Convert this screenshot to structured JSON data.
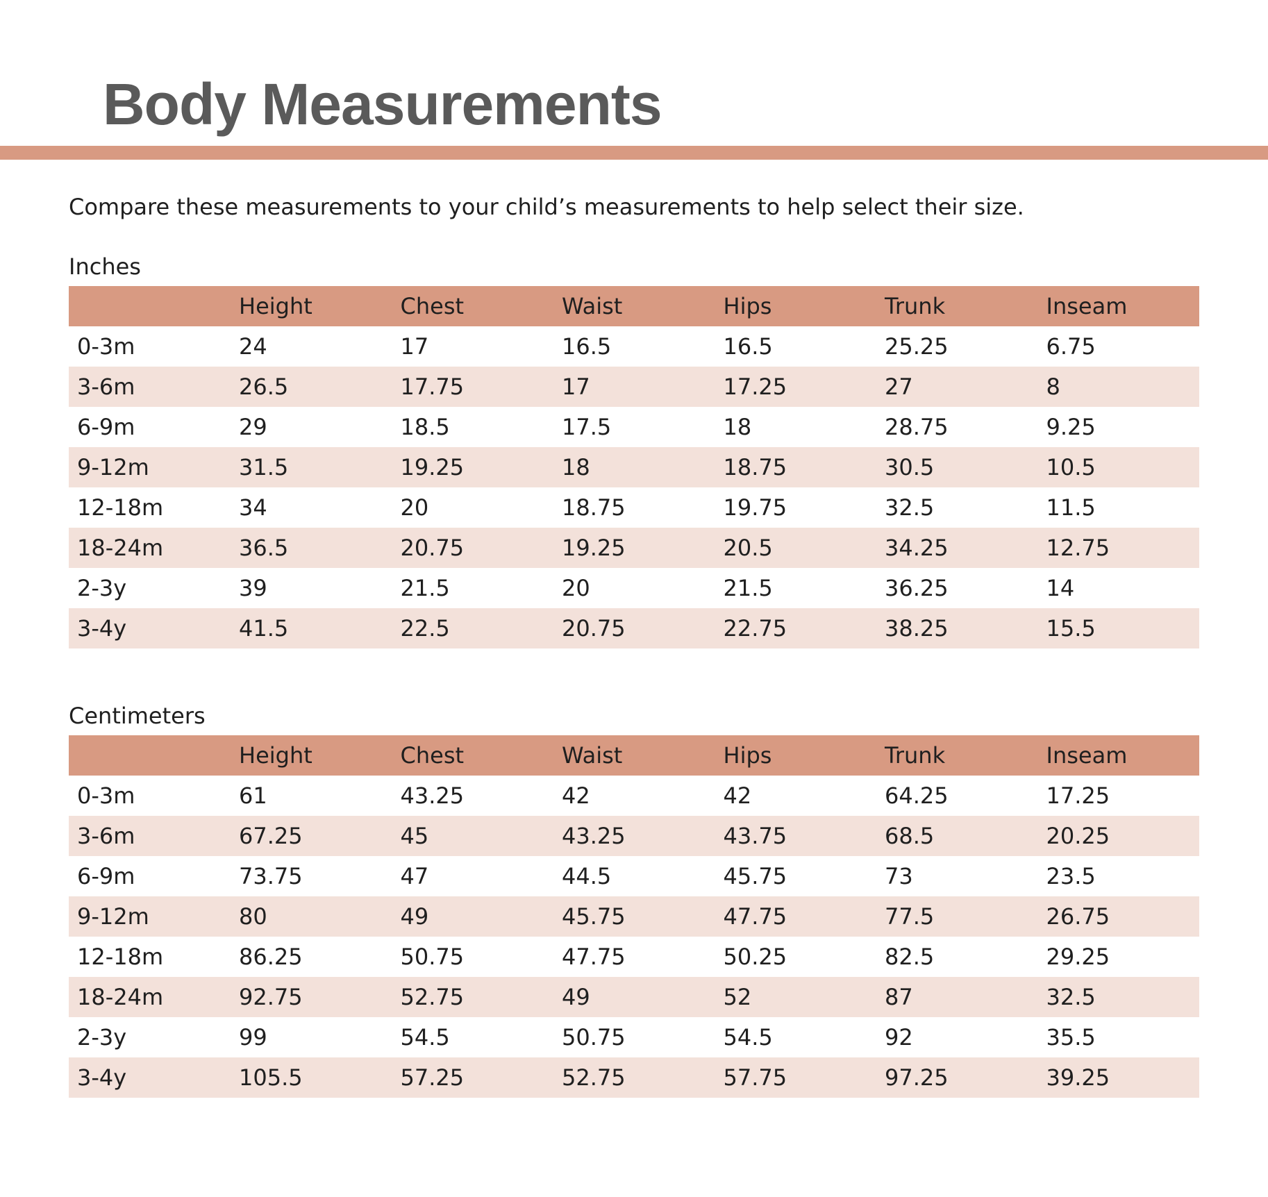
{
  "title": "Body Measurements",
  "intro": "Compare these measurements to your child’s measurements to help select their size.",
  "columns": [
    "",
    "Height",
    "Chest",
    "Waist",
    "Hips",
    "Trunk",
    "Inseam"
  ],
  "inches": {
    "label": "Inches",
    "rows": [
      [
        "0-3m",
        "24",
        "17",
        "16.5",
        "16.5",
        "25.25",
        "6.75"
      ],
      [
        "3-6m",
        "26.5",
        "17.75",
        "17",
        "17.25",
        "27",
        "8"
      ],
      [
        "6-9m",
        "29",
        "18.5",
        "17.5",
        "18",
        "28.75",
        "9.25"
      ],
      [
        "9-12m",
        "31.5",
        "19.25",
        "18",
        "18.75",
        "30.5",
        "10.5"
      ],
      [
        "12-18m",
        "34",
        "20",
        "18.75",
        "19.75",
        "32.5",
        "11.5"
      ],
      [
        "18-24m",
        "36.5",
        "20.75",
        "19.25",
        "20.5",
        "34.25",
        "12.75"
      ],
      [
        "2-3y",
        "39",
        "21.5",
        "20",
        "21.5",
        "36.25",
        "14"
      ],
      [
        "3-4y",
        "41.5",
        "22.5",
        "20.75",
        "22.75",
        "38.25",
        "15.5"
      ]
    ]
  },
  "centimeters": {
    "label": "Centimeters",
    "rows": [
      [
        "0-3m",
        "61",
        "43.25",
        "42",
        "42",
        "64.25",
        "17.25"
      ],
      [
        "3-6m",
        "67.25",
        "45",
        "43.25",
        "43.75",
        "68.5",
        "20.25"
      ],
      [
        "6-9m",
        "73.75",
        "47",
        "44.5",
        "45.75",
        "73",
        "23.5"
      ],
      [
        "9-12m",
        "80",
        "49",
        "45.75",
        "47.75",
        "77.5",
        "26.75"
      ],
      [
        "12-18m",
        "86.25",
        "50.75",
        "47.75",
        "50.25",
        "82.5",
        "29.25"
      ],
      [
        "18-24m",
        "92.75",
        "52.75",
        "49",
        "52",
        "87",
        "32.5"
      ],
      [
        "2-3y",
        "99",
        "54.5",
        "50.75",
        "54.5",
        "92",
        "35.5"
      ],
      [
        "3-4y",
        "105.5",
        "57.25",
        "52.75",
        "57.75",
        "97.25",
        "39.25"
      ]
    ]
  },
  "colors": {
    "title": "#5a5a5a",
    "accent": "#d89a82",
    "row_stripe": "#f3e1da",
    "text": "#1f1f1f"
  }
}
